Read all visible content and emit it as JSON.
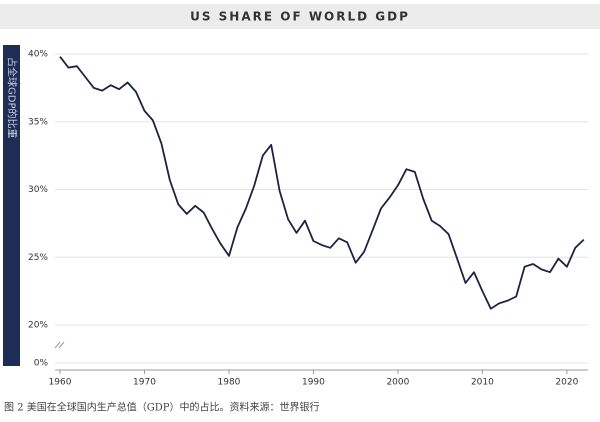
{
  "chart_data": {
    "type": "line",
    "title": "US SHARE OF WORLD GDP",
    "y_label": "占全球GDP的比重",
    "caption": "图 2 美国在全球国内生产总值（GDP）中的占比。资料来源：世界银行",
    "x": [
      1960,
      1961,
      1962,
      1963,
      1964,
      1965,
      1966,
      1967,
      1968,
      1969,
      1970,
      1971,
      1972,
      1973,
      1974,
      1975,
      1976,
      1977,
      1978,
      1979,
      1980,
      1981,
      1982,
      1983,
      1984,
      1985,
      1986,
      1987,
      1988,
      1989,
      1990,
      1991,
      1992,
      1993,
      1994,
      1995,
      1996,
      1997,
      1998,
      1999,
      2000,
      2001,
      2002,
      2003,
      2004,
      2005,
      2006,
      2007,
      2008,
      2009,
      2010,
      2011,
      2012,
      2013,
      2014,
      2015,
      2016,
      2017,
      2018,
      2019,
      2020,
      2021,
      2022
    ],
    "series": [
      {
        "name": "US",
        "color": "#1b2440",
        "values": [
          39.8,
          39.0,
          39.1,
          38.3,
          37.5,
          37.3,
          37.7,
          37.4,
          37.9,
          37.2,
          35.8,
          35.1,
          33.4,
          30.7,
          28.9,
          28.2,
          28.8,
          28.3,
          27.1,
          26.0,
          25.1,
          27.2,
          28.6,
          30.3,
          32.5,
          33.3,
          29.9,
          27.8,
          26.8,
          27.7,
          26.2,
          25.9,
          25.7,
          26.4,
          26.1,
          24.6,
          25.4,
          27.0,
          28.6,
          29.4,
          30.3,
          31.5,
          31.3,
          29.3,
          27.7,
          27.3,
          26.7,
          24.9,
          23.1,
          23.9,
          22.5,
          21.2,
          21.6,
          21.8,
          22.1,
          24.3,
          24.5,
          24.1,
          23.9,
          24.9,
          24.3,
          25.7,
          26.3
        ]
      }
    ],
    "xlim": [
      1960,
      2022.5
    ],
    "xticks": [
      1960,
      1970,
      1980,
      1990,
      2000,
      2010,
      2020
    ],
    "ylim": [
      0,
      40
    ],
    "axis_break": [
      0,
      20
    ],
    "yticks": [
      {
        "value": 0,
        "label": "0%"
      },
      {
        "value": 20,
        "label": "20%"
      },
      {
        "value": 25,
        "label": "25%"
      },
      {
        "value": 30,
        "label": "30%"
      },
      {
        "value": 35,
        "label": "35%"
      },
      {
        "value": 40,
        "label": "40%"
      }
    ],
    "grid": true
  }
}
